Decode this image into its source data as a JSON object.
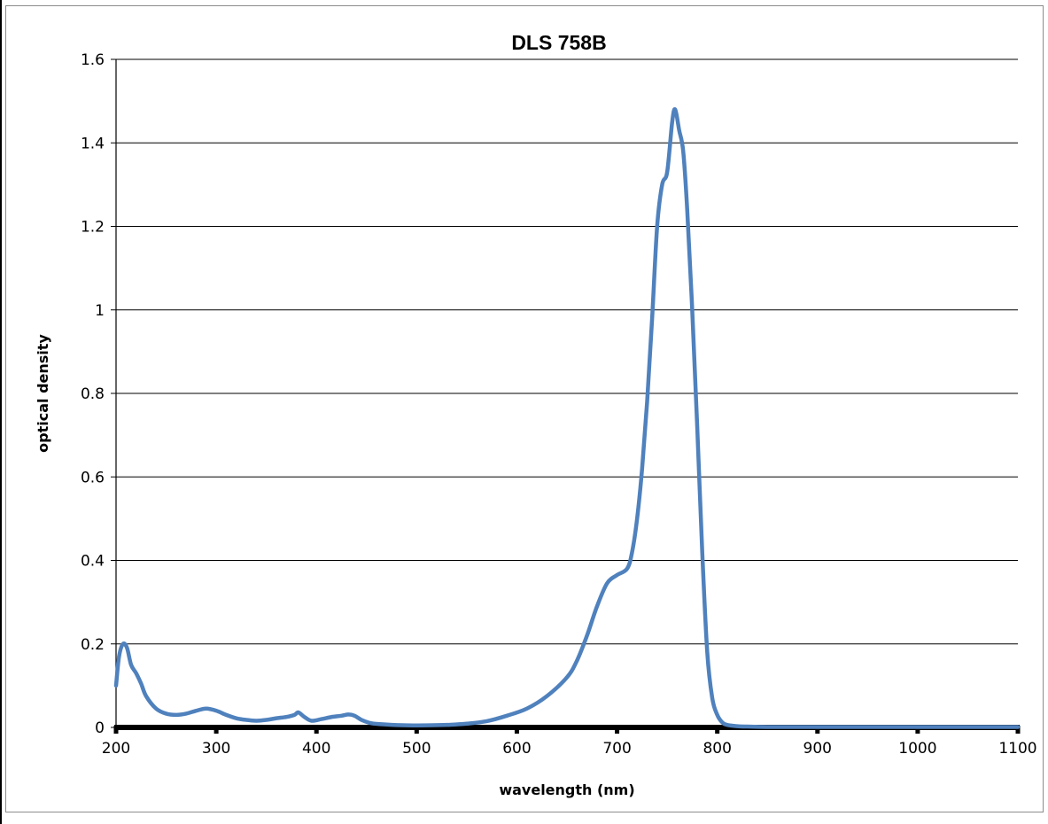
{
  "chart_data": {
    "type": "line",
    "title": "DLS 758B",
    "xlabel": "wavelength (nm)",
    "ylabel": "optical density",
    "xlim": [
      200,
      1100
    ],
    "ylim": [
      0,
      1.6
    ],
    "x_ticks": [
      "200",
      "300",
      "400",
      "500",
      "600",
      "700",
      "800",
      "900",
      "1000",
      "1100"
    ],
    "y_ticks": [
      "0",
      "0.2",
      "0.4",
      "0.6",
      "0.8",
      "1",
      "1.2",
      "1.4",
      "1.6"
    ],
    "grid": "horizontal",
    "legend": "none",
    "series_color": "#4F81BD",
    "series": [
      {
        "x": [
          200,
          203,
          207,
          211,
          215,
          220,
          225,
          230,
          240,
          250,
          260,
          270,
          280,
          290,
          300,
          310,
          320,
          330,
          340,
          350,
          360,
          370,
          378,
          382,
          388,
          395,
          405,
          415,
          425,
          432,
          438,
          445,
          455,
          470,
          490,
          510,
          530,
          550,
          570,
          590,
          610,
          630,
          650,
          660,
          670,
          680,
          690,
          700,
          710,
          715,
          720,
          725,
          730,
          735,
          740,
          745,
          750,
          755,
          758,
          762,
          766,
          770,
          775,
          780,
          785,
          790,
          795,
          800,
          805,
          810,
          820,
          830,
          850,
          900,
          1000,
          1100
        ],
        "values": [
          0.1,
          0.17,
          0.2,
          0.19,
          0.15,
          0.13,
          0.105,
          0.075,
          0.045,
          0.033,
          0.03,
          0.033,
          0.04,
          0.045,
          0.04,
          0.03,
          0.022,
          0.018,
          0.016,
          0.018,
          0.022,
          0.025,
          0.03,
          0.036,
          0.025,
          0.016,
          0.02,
          0.025,
          0.028,
          0.031,
          0.028,
          0.018,
          0.01,
          0.007,
          0.005,
          0.005,
          0.006,
          0.009,
          0.015,
          0.028,
          0.045,
          0.075,
          0.12,
          0.16,
          0.22,
          0.29,
          0.345,
          0.365,
          0.38,
          0.42,
          0.5,
          0.62,
          0.78,
          0.98,
          1.2,
          1.3,
          1.33,
          1.45,
          1.48,
          1.43,
          1.38,
          1.24,
          1.0,
          0.72,
          0.42,
          0.18,
          0.07,
          0.03,
          0.012,
          0.006,
          0.003,
          0.002,
          0.001,
          0.001,
          0.001,
          0.001
        ]
      }
    ]
  }
}
